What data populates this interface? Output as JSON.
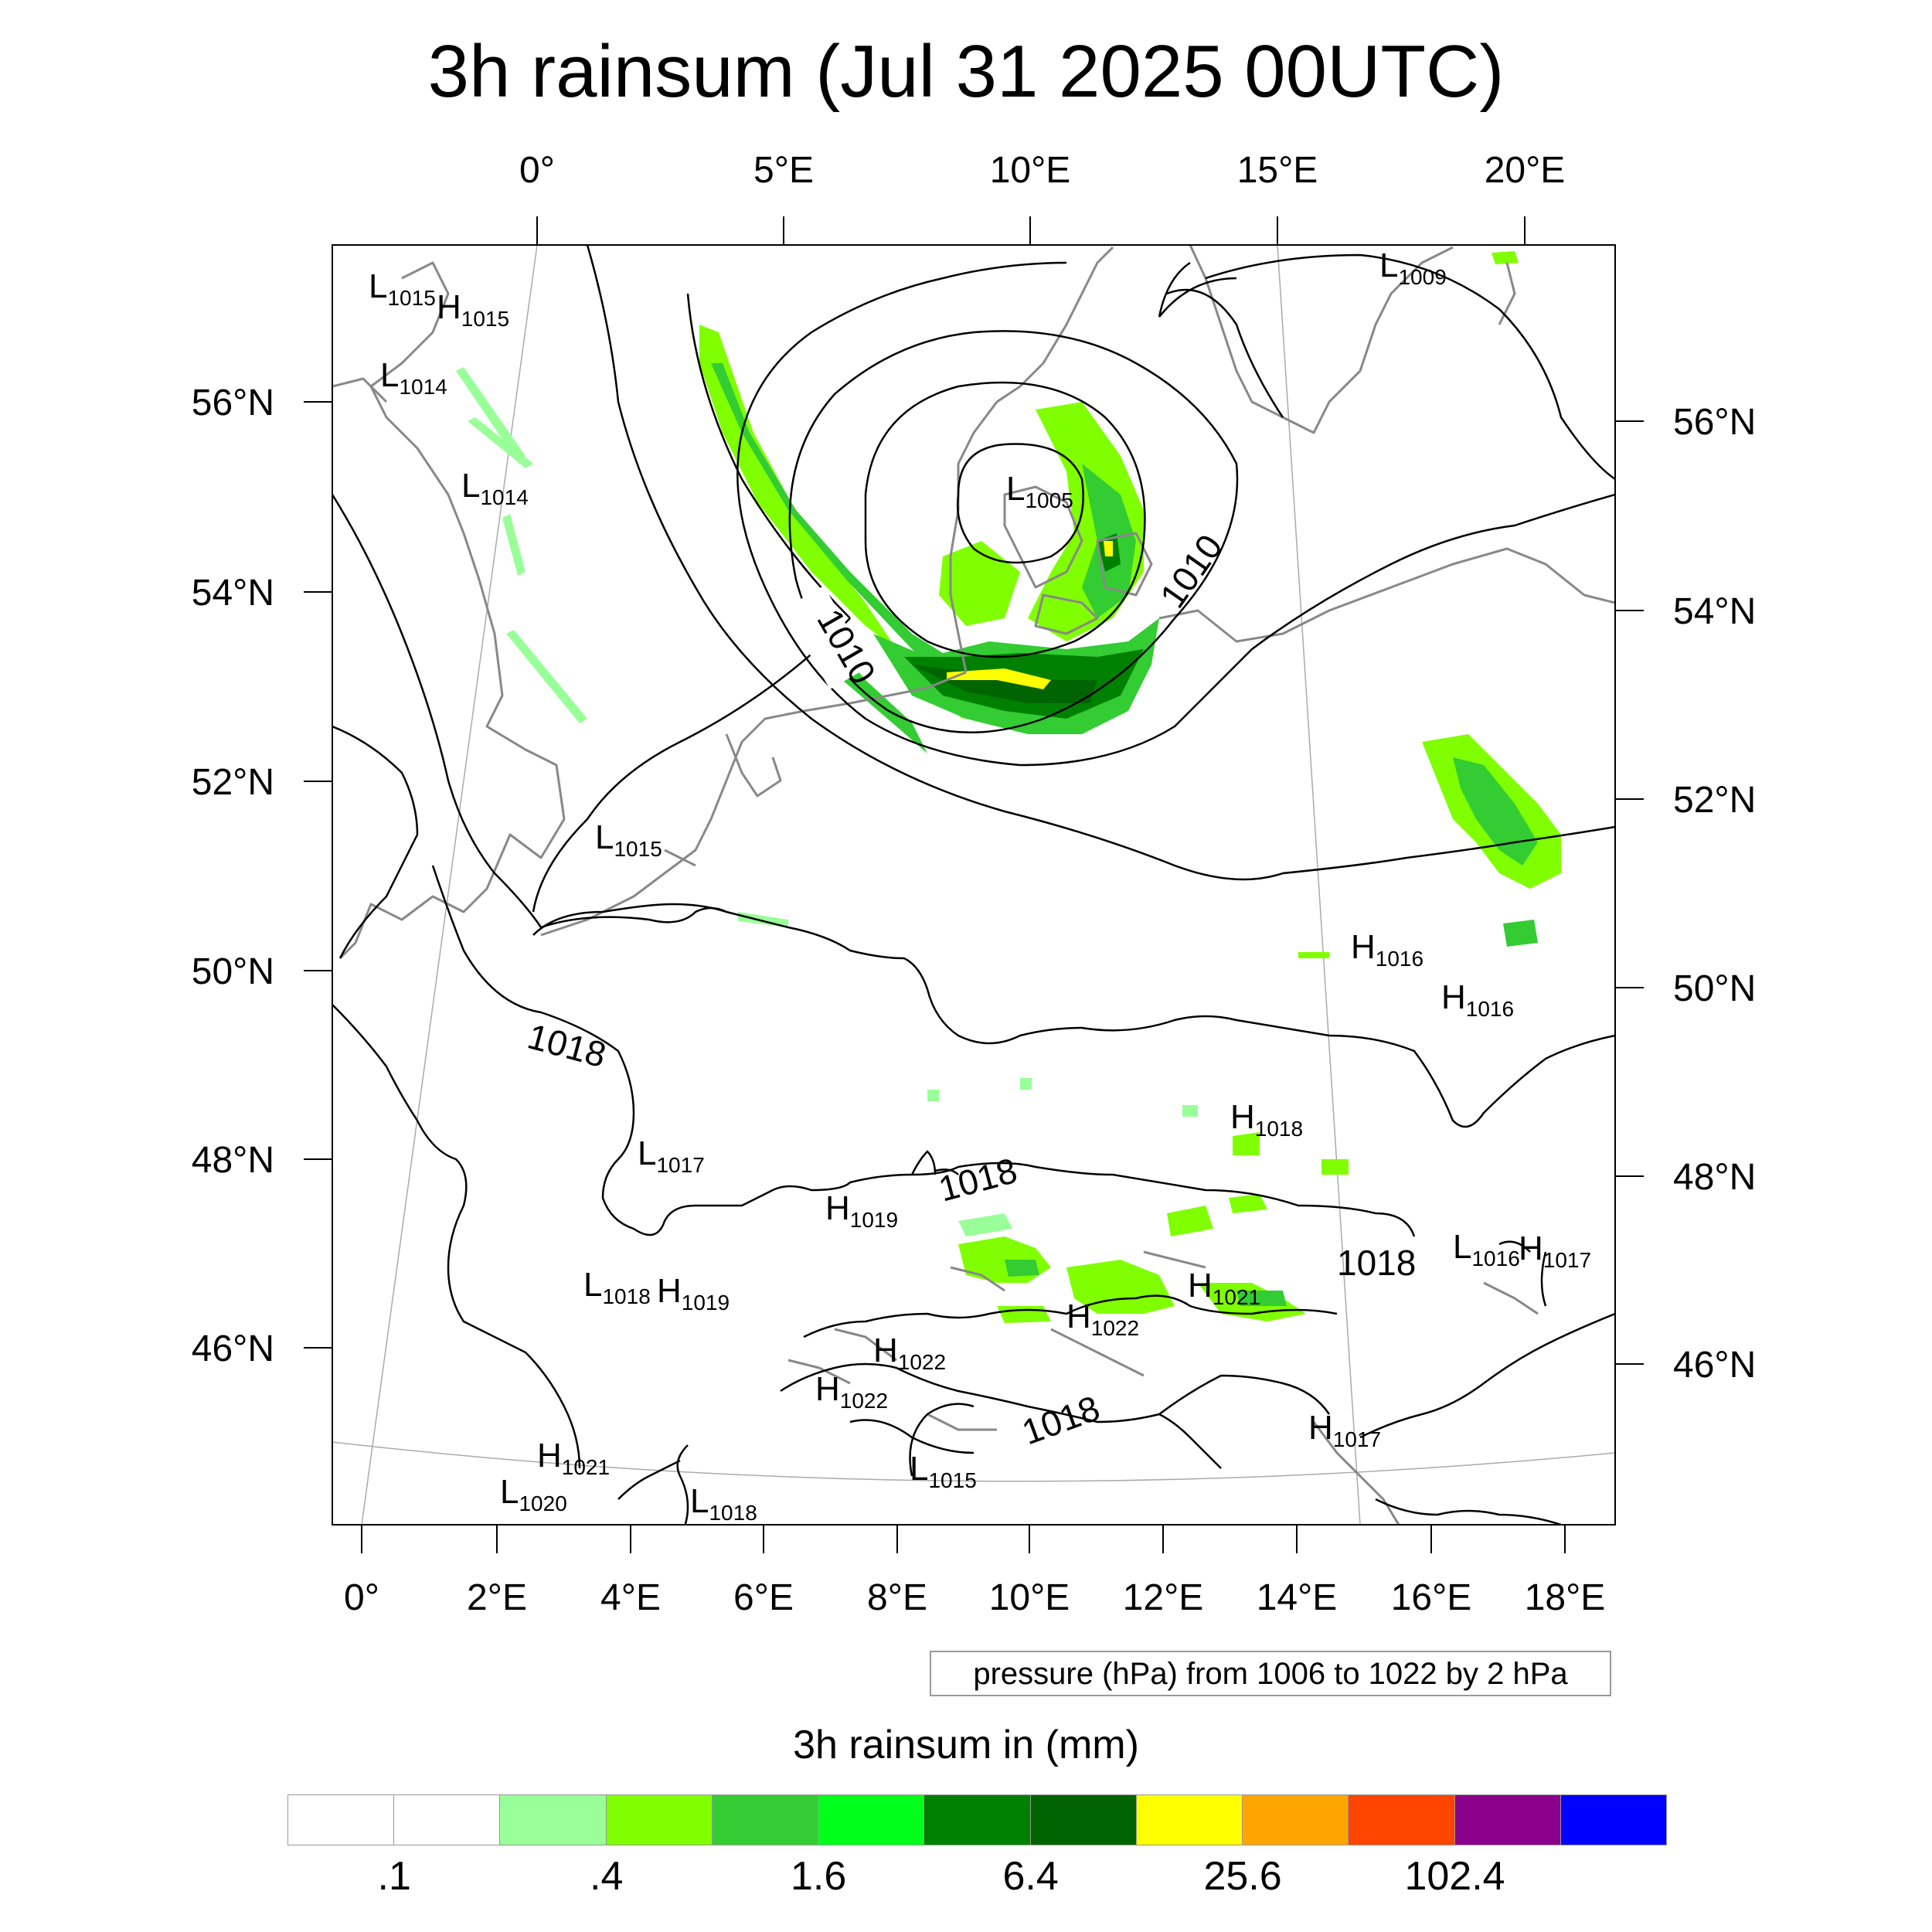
{
  "title": "3h rainsum (Jul 31 2025 00UTC)",
  "map": {
    "top_lon_labels": [
      "0°",
      "5°E",
      "10°E",
      "15°E",
      "20°E"
    ],
    "bottom_lon_labels": [
      "0°",
      "2°E",
      "4°E",
      "6°E",
      "8°E",
      "10°E",
      "12°E",
      "14°E",
      "16°E",
      "18°E"
    ],
    "left_lat_labels": [
      "56°N",
      "54°N",
      "52°N",
      "50°N",
      "48°N",
      "46°N"
    ],
    "right_lat_labels": [
      "56°N",
      "54°N",
      "52°N",
      "50°N",
      "48°N",
      "46°N"
    ],
    "isobar_labels": [
      "1010",
      "1010",
      "1018",
      "1018",
      "1018",
      "1018"
    ],
    "pressure_centers": [
      {
        "type": "L",
        "value": "1015"
      },
      {
        "type": "H",
        "value": "1015"
      },
      {
        "type": "L",
        "value": "1014"
      },
      {
        "type": "L",
        "value": "1014"
      },
      {
        "type": "L",
        "value": "1005"
      },
      {
        "type": "L",
        "value": "1009"
      },
      {
        "type": "L",
        "value": "1015"
      },
      {
        "type": "H",
        "value": "1016"
      },
      {
        "type": "H",
        "value": "1016"
      },
      {
        "type": "H",
        "value": "1018"
      },
      {
        "type": "L",
        "value": "1017"
      },
      {
        "type": "H",
        "value": "1019"
      },
      {
        "type": "L",
        "value": "1018"
      },
      {
        "type": "H",
        "value": "1019"
      },
      {
        "type": "H",
        "value": "1021"
      },
      {
        "type": "H",
        "value": "1022"
      },
      {
        "type": "L",
        "value": "1016"
      },
      {
        "type": "H",
        "value": "1017"
      },
      {
        "type": "H",
        "value": "1022"
      },
      {
        "type": "H",
        "value": "1022"
      },
      {
        "type": "H",
        "value": "1017"
      },
      {
        "type": "H",
        "value": "1021"
      },
      {
        "type": "L",
        "value": "1020"
      },
      {
        "type": "L",
        "value": "1018"
      },
      {
        "type": "L",
        "value": "1015"
      }
    ],
    "colors": {
      "coastline": "#888888",
      "isobar": "#000000",
      "graticule": "#aaaaaa"
    }
  },
  "info_box": "pressure (hPa) from 1006 to 1022 by 2 hPa",
  "colorbar": {
    "title": "3h rainsum in (mm)",
    "colors": [
      "#ffffff",
      "#ffffff",
      "#99ff99",
      "#80ff00",
      "#33cc33",
      "#00ff1a",
      "#008000",
      "#006400",
      "#ffff00",
      "#ffa500",
      "#ff4500",
      "#8b008b",
      "#0000ff"
    ],
    "labels": [
      ".1",
      ".4",
      "1.6",
      "6.4",
      "25.6",
      "102.4"
    ]
  }
}
